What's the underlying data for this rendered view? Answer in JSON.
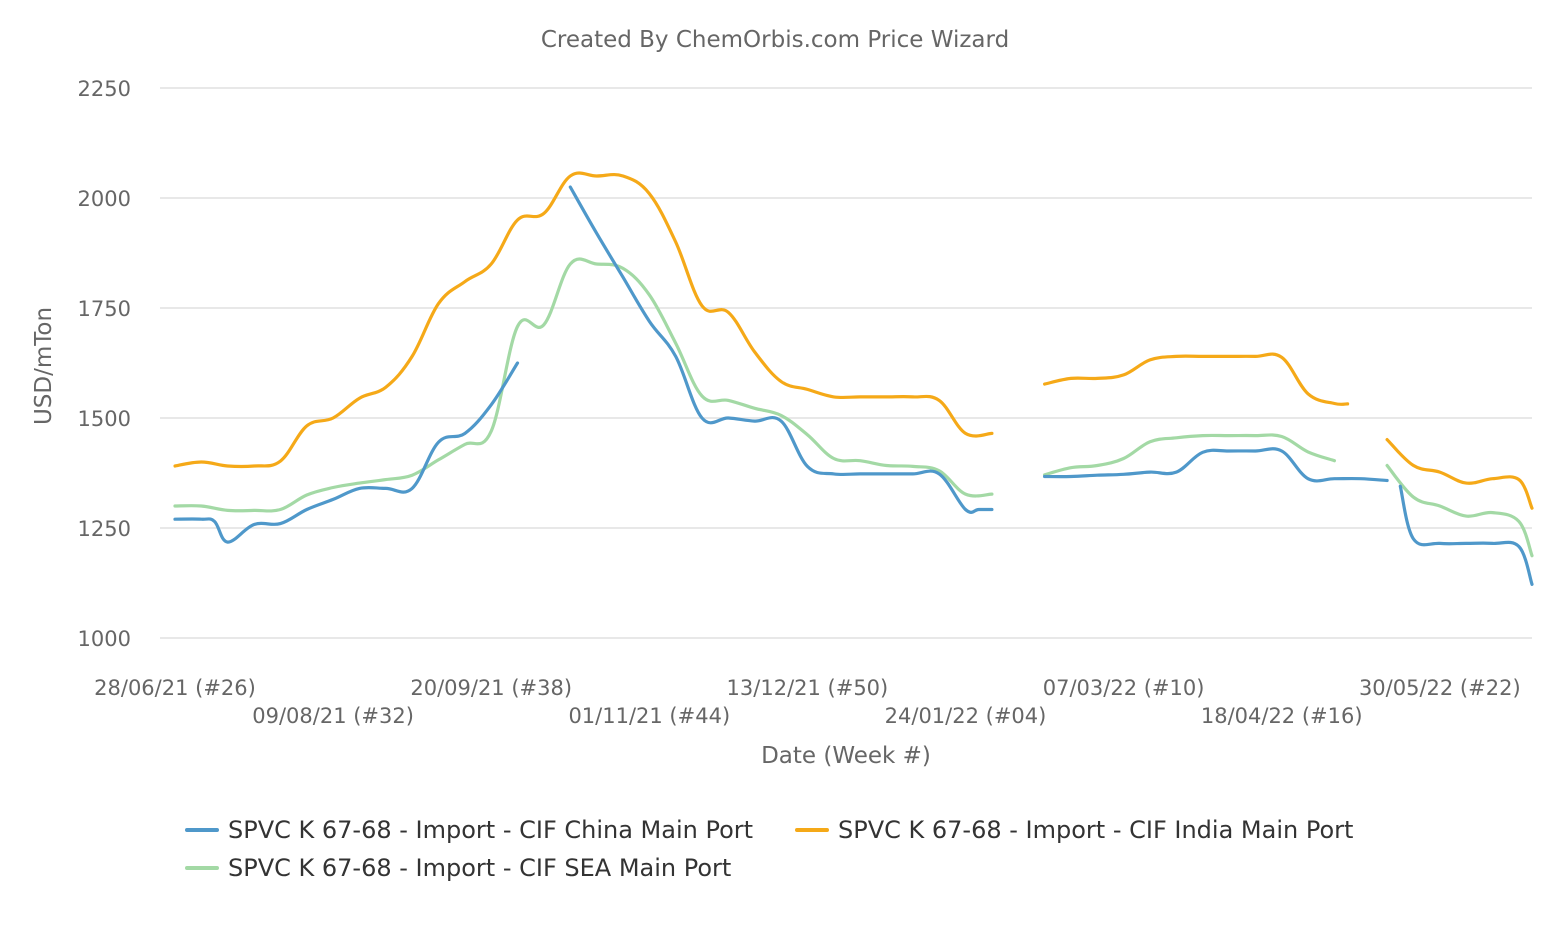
{
  "chart_data": {
    "type": "line",
    "title": "Created By ChemOrbis.com Price Wizard",
    "xlabel": "Date (Week #)",
    "ylabel": "USD/mTon",
    "ylim": [
      1000,
      2250
    ],
    "yticks": [
      "1000",
      "1250",
      "1500",
      "1750",
      "2000",
      "2250"
    ],
    "grid": true,
    "legend_position": "bottom",
    "x_tick_labels": [
      {
        "label": "28/06/21 (#26)",
        "x": 0
      },
      {
        "label": "09/08/21 (#32)",
        "x": 6
      },
      {
        "label": "20/09/21 (#38)",
        "x": 12
      },
      {
        "label": "01/11/21 (#44)",
        "x": 18
      },
      {
        "label": "13/12/21 (#50)",
        "x": 24
      },
      {
        "label": "24/01/22 (#04)",
        "x": 30
      },
      {
        "label": "07/03/22 (#10)",
        "x": 36
      },
      {
        "label": "18/04/22 (#16)",
        "x": 42
      },
      {
        "label": "30/05/22 (#22)",
        "x": 48
      }
    ],
    "series": [
      {
        "name": "SPVC K 67-68 - Import - CIF China Main Port",
        "color": "#4f98ca",
        "segments": [
          [
            [
              0,
              1270
            ],
            [
              1,
              1270
            ],
            [
              1.5,
              1265
            ],
            [
              2,
              1218
            ],
            [
              3,
              1258
            ],
            [
              4,
              1260
            ],
            [
              5,
              1292
            ],
            [
              6,
              1315
            ],
            [
              7,
              1340
            ],
            [
              8,
              1340
            ],
            [
              9,
              1340
            ],
            [
              10,
              1445
            ],
            [
              11,
              1465
            ],
            [
              12,
              1530
            ],
            [
              13,
              1625
            ]
          ],
          [
            [
              15,
              2025
            ],
            [
              16,
              1920
            ],
            [
              17,
              1820
            ],
            [
              18,
              1720
            ],
            [
              19,
              1640
            ],
            [
              20,
              1500
            ],
            [
              21,
              1500
            ],
            [
              22,
              1493
            ],
            [
              23,
              1493
            ],
            [
              24,
              1390
            ],
            [
              25,
              1373
            ],
            [
              26,
              1373
            ],
            [
              27,
              1373
            ],
            [
              28,
              1373
            ],
            [
              29,
              1373
            ],
            [
              30,
              1292
            ],
            [
              30.5,
              1292
            ],
            [
              31,
              1292
            ]
          ],
          [
            [
              33,
              1367
            ],
            [
              34,
              1367
            ],
            [
              35,
              1370
            ],
            [
              36,
              1372
            ],
            [
              37,
              1377
            ],
            [
              38,
              1377
            ],
            [
              39,
              1422
            ],
            [
              40,
              1425
            ],
            [
              41,
              1425
            ],
            [
              42,
              1425
            ],
            [
              43,
              1362
            ],
            [
              44,
              1362
            ],
            [
              45,
              1362
            ],
            [
              46,
              1358
            ]
          ],
          [
            [
              46.5,
              1345
            ],
            [
              47,
              1225
            ],
            [
              48,
              1215
            ],
            [
              49,
              1215
            ],
            [
              50,
              1215
            ],
            [
              51,
              1208
            ],
            [
              51.5,
              1122
            ]
          ]
        ]
      },
      {
        "name": "SPVC K 67-68 - Import - CIF India Main Port",
        "color": "#f5a918",
        "segments": [
          [
            [
              0,
              1391
            ],
            [
              1,
              1400
            ],
            [
              2,
              1391
            ],
            [
              3,
              1391
            ],
            [
              4,
              1402
            ],
            [
              5,
              1482
            ],
            [
              6,
              1500
            ],
            [
              7,
              1545
            ],
            [
              8,
              1570
            ],
            [
              9,
              1640
            ],
            [
              10,
              1760
            ],
            [
              11,
              1810
            ],
            [
              12,
              1850
            ],
            [
              13,
              1950
            ],
            [
              14,
              1965
            ],
            [
              15,
              2050
            ],
            [
              16,
              2050
            ],
            [
              17,
              2050
            ],
            [
              18,
              2010
            ],
            [
              19,
              1900
            ],
            [
              20,
              1755
            ],
            [
              21,
              1740
            ],
            [
              22,
              1650
            ],
            [
              23,
              1583
            ],
            [
              24,
              1565
            ],
            [
              25,
              1548
            ],
            [
              26,
              1548
            ],
            [
              27,
              1548
            ],
            [
              28,
              1548
            ],
            [
              29,
              1540
            ],
            [
              30,
              1465
            ],
            [
              31,
              1465
            ]
          ],
          [
            [
              33,
              1577
            ],
            [
              34,
              1590
            ],
            [
              35,
              1590
            ],
            [
              36,
              1598
            ],
            [
              37,
              1632
            ],
            [
              38,
              1640
            ],
            [
              39,
              1640
            ],
            [
              40,
              1640
            ],
            [
              41,
              1640
            ],
            [
              42,
              1638
            ],
            [
              43,
              1555
            ],
            [
              44,
              1533
            ],
            [
              44.5,
              1532
            ]
          ],
          [
            [
              46,
              1451
            ],
            [
              47,
              1392
            ],
            [
              48,
              1377
            ],
            [
              49,
              1352
            ],
            [
              50,
              1362
            ],
            [
              51,
              1360
            ],
            [
              51.5,
              1295
            ]
          ]
        ]
      },
      {
        "name": "SPVC K 67-68 - Import - CIF SEA Main Port",
        "color": "#a3d9a5",
        "segments": [
          [
            [
              0,
              1300
            ],
            [
              1,
              1300
            ],
            [
              2,
              1290
            ],
            [
              3,
              1290
            ],
            [
              4,
              1292
            ],
            [
              5,
              1325
            ],
            [
              6,
              1342
            ],
            [
              7,
              1352
            ],
            [
              8,
              1360
            ],
            [
              9,
              1370
            ],
            [
              10,
              1405
            ],
            [
              11,
              1440
            ],
            [
              12,
              1470
            ],
            [
              13,
              1708
            ],
            [
              14,
              1712
            ],
            [
              15,
              1850
            ],
            [
              16,
              1850
            ],
            [
              17,
              1840
            ],
            [
              18,
              1780
            ],
            [
              19,
              1670
            ],
            [
              20,
              1550
            ],
            [
              21,
              1540
            ],
            [
              22,
              1522
            ],
            [
              23,
              1506
            ],
            [
              24,
              1462
            ],
            [
              25,
              1408
            ],
            [
              26,
              1403
            ],
            [
              27,
              1392
            ],
            [
              28,
              1390
            ],
            [
              29,
              1380
            ],
            [
              30,
              1327
            ],
            [
              31,
              1327
            ]
          ],
          [
            [
              33,
              1371
            ],
            [
              34,
              1387
            ],
            [
              35,
              1392
            ],
            [
              36,
              1408
            ],
            [
              37,
              1446
            ],
            [
              38,
              1455
            ],
            [
              39,
              1460
            ],
            [
              40,
              1460
            ],
            [
              41,
              1460
            ],
            [
              42,
              1458
            ],
            [
              43,
              1423
            ],
            [
              44,
              1403
            ]
          ],
          [
            [
              46,
              1392
            ],
            [
              47,
              1320
            ],
            [
              48,
              1300
            ],
            [
              49,
              1277
            ],
            [
              50,
              1285
            ],
            [
              51,
              1265
            ],
            [
              51.5,
              1187
            ]
          ]
        ]
      }
    ]
  }
}
